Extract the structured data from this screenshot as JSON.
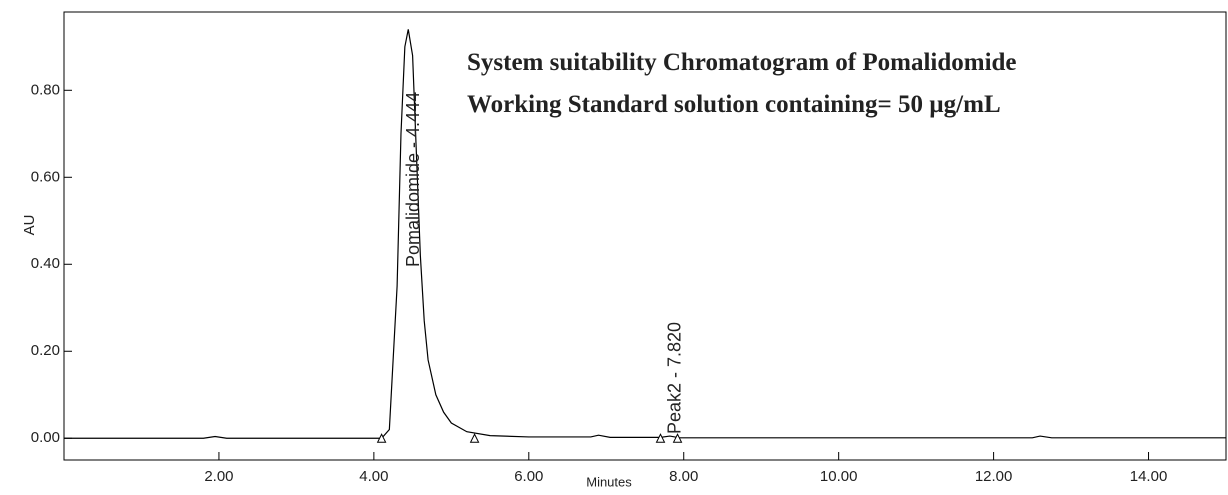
{
  "chart_data": {
    "type": "line",
    "title_lines": [
      "System suitability Chromatogram of Pomalidomide",
      "Working Standard solution containing= 50 µg/mL"
    ],
    "x_label": "Minutes",
    "y_label": "AU",
    "xlim": [
      0,
      15
    ],
    "ylim": [
      -0.05,
      0.98
    ],
    "xticks": [
      {
        "value": 2,
        "label": "2.00"
      },
      {
        "value": 4,
        "label": "4.00"
      },
      {
        "value": 6,
        "label": "6.00"
      },
      {
        "value": 8,
        "label": "8.00"
      },
      {
        "value": 10,
        "label": "10.00"
      },
      {
        "value": 12,
        "label": "12.00"
      },
      {
        "value": 14,
        "label": "14.00"
      }
    ],
    "yticks": [
      {
        "value": 0,
        "label": "0.00"
      },
      {
        "value": 0.2,
        "label": "0.20"
      },
      {
        "value": 0.4,
        "label": "0.40"
      },
      {
        "value": 0.6,
        "label": "0.60"
      },
      {
        "value": 0.8,
        "label": "0.80"
      }
    ],
    "series": [
      {
        "color": "#000000",
        "x": [
          0,
          1.8,
          1.95,
          2.1,
          4.1,
          4.2,
          4.3,
          4.35,
          4.4,
          4.444,
          4.5,
          4.55,
          4.6,
          4.65,
          4.7,
          4.8,
          4.9,
          5.0,
          5.2,
          5.5,
          6.0,
          6.8,
          6.9,
          7.05,
          7.7,
          7.82,
          7.95,
          12.5,
          12.6,
          12.75,
          15
        ],
        "values": [
          0,
          0,
          0.004,
          0,
          0,
          0.02,
          0.35,
          0.7,
          0.9,
          0.94,
          0.88,
          0.65,
          0.42,
          0.27,
          0.18,
          0.1,
          0.06,
          0.035,
          0.015,
          0.006,
          0.003,
          0.003,
          0.007,
          0.002,
          0.002,
          0.005,
          0.001,
          0.001,
          0.005,
          0.001,
          0.001
        ]
      }
    ],
    "peaks": [
      {
        "label": "Pomalidomide - 4.444",
        "x": 4.444
      },
      {
        "label": "Peak2 - 7.820",
        "x": 7.82
      }
    ],
    "peak_markers": [
      4.1,
      5.3,
      7.7,
      7.92
    ]
  }
}
